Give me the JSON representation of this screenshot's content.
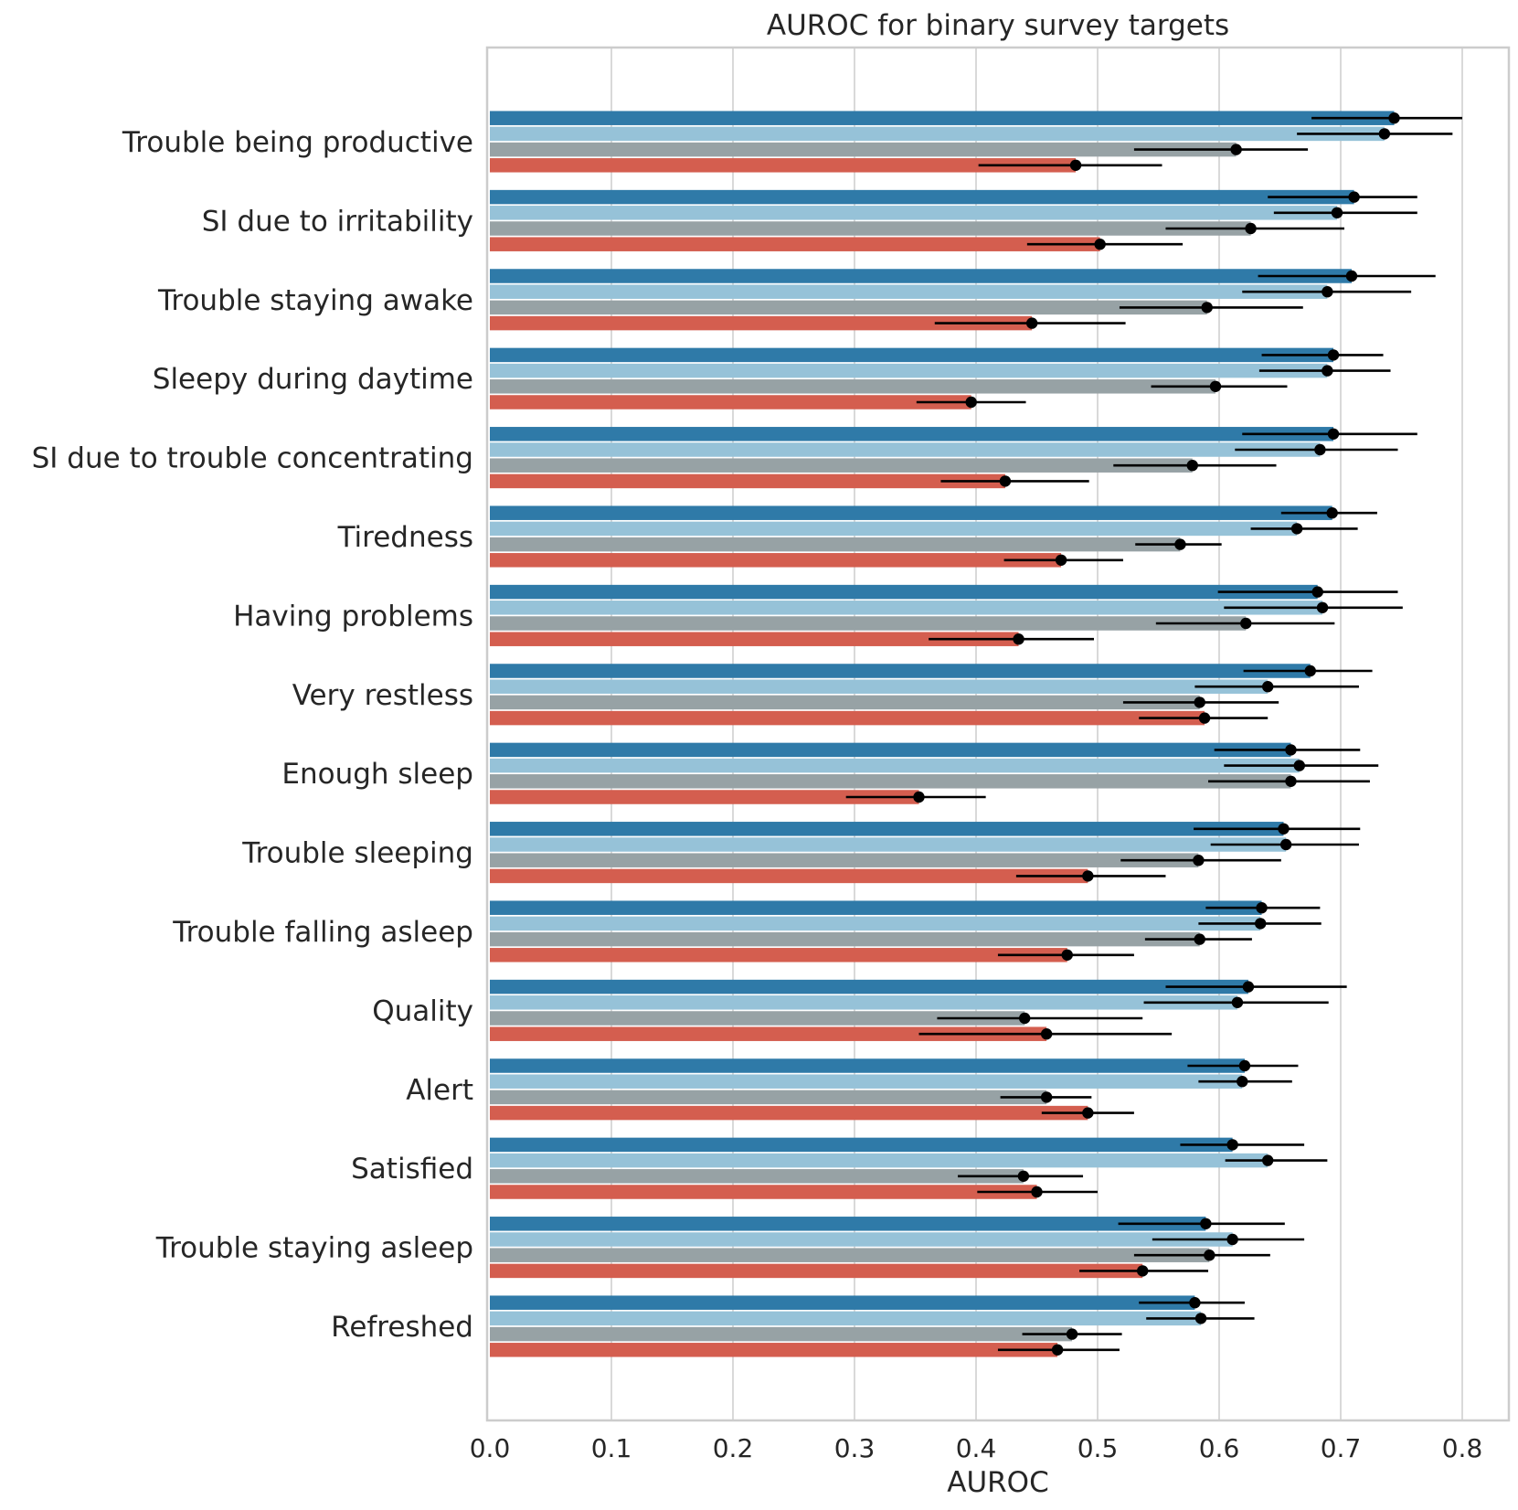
{
  "chart_data": {
    "type": "bar",
    "orientation": "horizontal",
    "title": "AUROC for binary survey targets",
    "xlabel": "AUROC",
    "ylabel": "",
    "xlim": [
      0.0,
      0.84
    ],
    "xticks": [
      "0.0",
      "0.1",
      "0.2",
      "0.3",
      "0.4",
      "0.5",
      "0.6",
      "0.7",
      "0.8"
    ],
    "grid": true,
    "legend": null,
    "categories": [
      "Trouble being productive",
      "SI due to irritability",
      "Trouble staying awake",
      "Sleepy during daytime",
      "SI due to trouble concentrating",
      "Tiredness",
      "Having problems",
      "Very restless",
      "Enough sleep",
      "Trouble sleeping",
      "Trouble falling asleep",
      "Quality",
      "Alert",
      "Satisfied",
      "Trouble staying asleep",
      "Refreshed"
    ],
    "series": [
      {
        "color": "#2f7aa8",
        "values": [
          0.744,
          0.711,
          0.709,
          0.694,
          0.694,
          0.693,
          0.681,
          0.675,
          0.659,
          0.653,
          0.635,
          0.624,
          0.621,
          0.611,
          0.589,
          0.58
        ],
        "ci_low": [
          0.676,
          0.64,
          0.632,
          0.635,
          0.619,
          0.651,
          0.599,
          0.62,
          0.596,
          0.579,
          0.589,
          0.556,
          0.574,
          0.568,
          0.517,
          0.534
        ],
        "ci_high": [
          0.8,
          0.763,
          0.778,
          0.735,
          0.763,
          0.73,
          0.747,
          0.726,
          0.716,
          0.716,
          0.683,
          0.705,
          0.665,
          0.67,
          0.654,
          0.621
        ]
      },
      {
        "color": "#96c2d8",
        "values": [
          0.736,
          0.697,
          0.689,
          0.689,
          0.683,
          0.664,
          0.685,
          0.64,
          0.666,
          0.655,
          0.634,
          0.615,
          0.619,
          0.64,
          0.611,
          0.585
        ],
        "ci_low": [
          0.664,
          0.645,
          0.619,
          0.633,
          0.613,
          0.626,
          0.604,
          0.58,
          0.604,
          0.593,
          0.583,
          0.538,
          0.583,
          0.605,
          0.545,
          0.54
        ],
        "ci_high": [
          0.792,
          0.763,
          0.758,
          0.741,
          0.747,
          0.714,
          0.751,
          0.715,
          0.731,
          0.715,
          0.684,
          0.69,
          0.66,
          0.689,
          0.67,
          0.629
        ]
      },
      {
        "color": "#97a2a5",
        "values": [
          0.614,
          0.626,
          0.59,
          0.597,
          0.578,
          0.568,
          0.622,
          0.584,
          0.659,
          0.583,
          0.584,
          0.44,
          0.458,
          0.439,
          0.592,
          0.479
        ],
        "ci_low": [
          0.53,
          0.556,
          0.518,
          0.544,
          0.513,
          0.531,
          0.548,
          0.521,
          0.591,
          0.519,
          0.539,
          0.368,
          0.42,
          0.385,
          0.53,
          0.438
        ],
        "ci_high": [
          0.673,
          0.703,
          0.669,
          0.656,
          0.647,
          0.602,
          0.695,
          0.649,
          0.724,
          0.651,
          0.627,
          0.537,
          0.495,
          0.488,
          0.642,
          0.52
        ]
      },
      {
        "color": "#d45e4f",
        "values": [
          0.482,
          0.502,
          0.446,
          0.396,
          0.424,
          0.47,
          0.435,
          0.588,
          0.353,
          0.492,
          0.475,
          0.458,
          0.492,
          0.45,
          0.537,
          0.467
        ],
        "ci_low": [
          0.402,
          0.442,
          0.366,
          0.351,
          0.371,
          0.423,
          0.361,
          0.534,
          0.293,
          0.433,
          0.418,
          0.353,
          0.454,
          0.401,
          0.485,
          0.418
        ],
        "ci_high": [
          0.553,
          0.57,
          0.523,
          0.441,
          0.493,
          0.521,
          0.497,
          0.64,
          0.408,
          0.556,
          0.53,
          0.561,
          0.53,
          0.5,
          0.591,
          0.518
        ]
      }
    ]
  }
}
